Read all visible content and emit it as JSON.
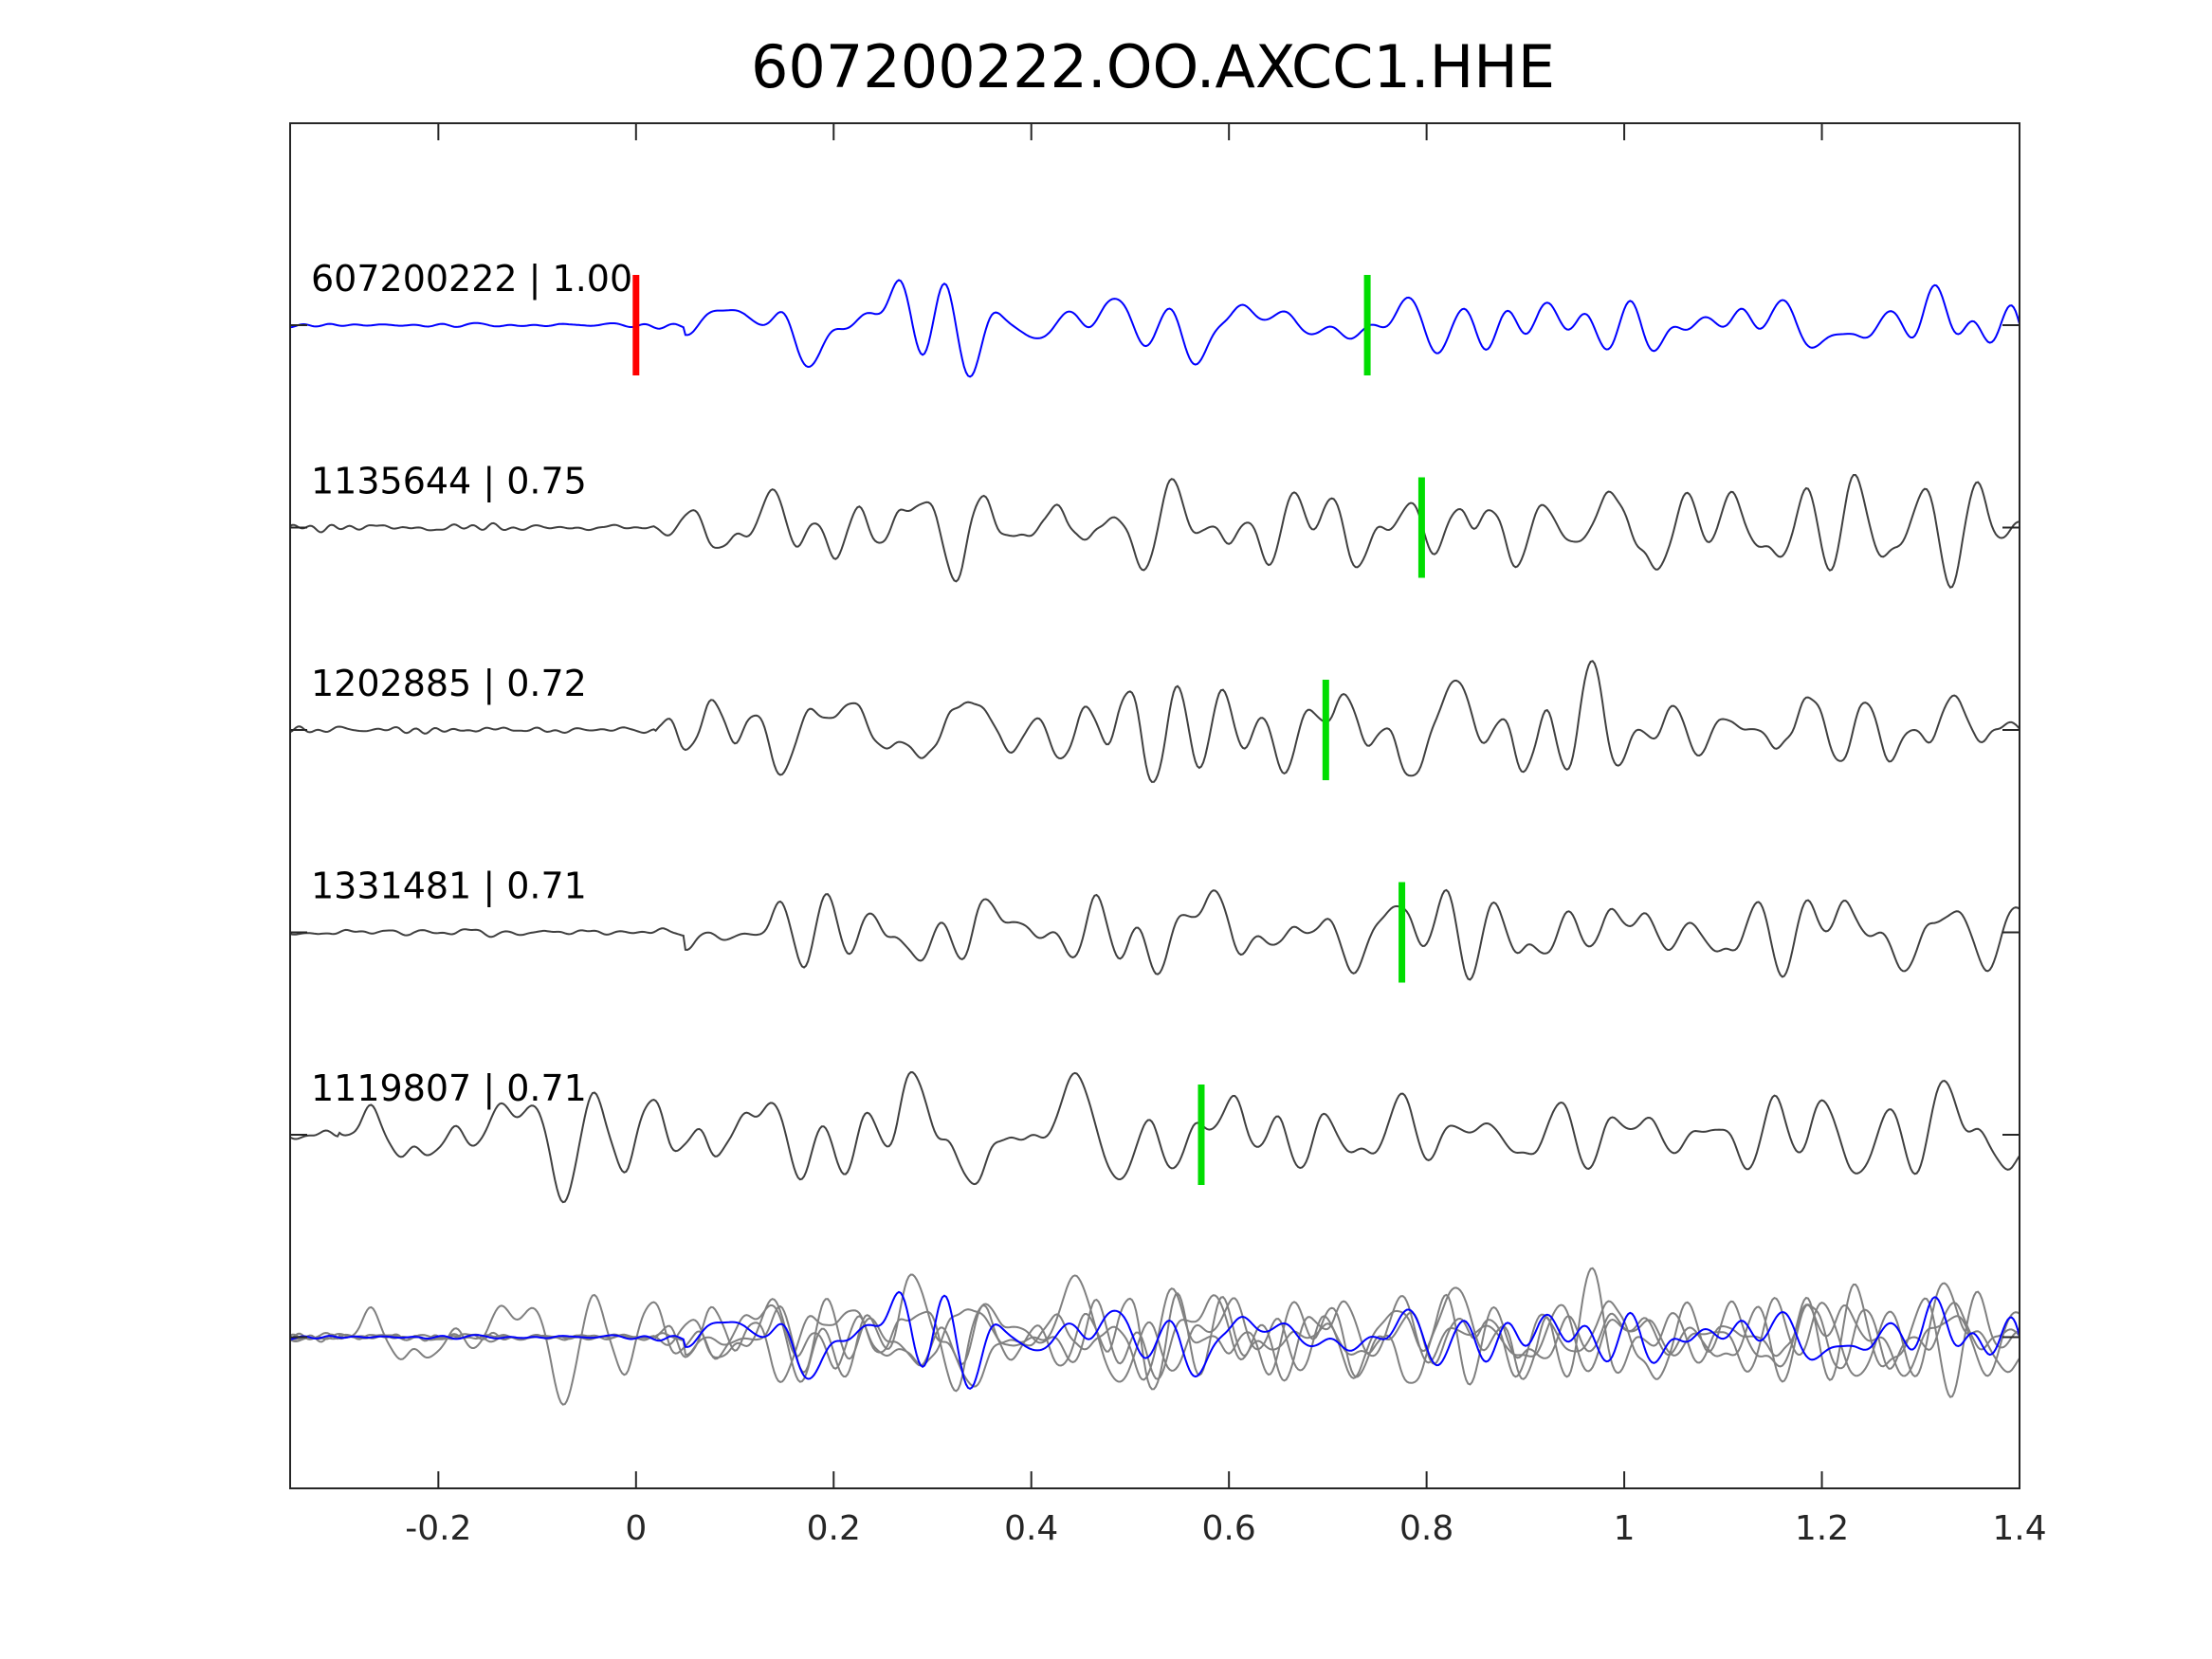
{
  "chart_data": {
    "type": "line",
    "title": "607200222.OO.AXCC1.HHE",
    "xlabel": "",
    "ylabel": "",
    "xlim": [
      -0.35,
      1.4
    ],
    "xticks": [
      -0.2,
      0,
      0.2,
      0.4,
      0.6,
      0.8,
      1,
      1.2,
      1.4
    ],
    "xtick_labels": [
      "-0.2",
      "0",
      "0.2",
      "0.4",
      "0.6",
      "0.8",
      "1",
      "1.2",
      "1.4"
    ],
    "grid": false,
    "colors": {
      "master": "#0000ff",
      "trace": "#404040",
      "overlay": "#808080",
      "origin_pick": "#ff0000",
      "phase_pick": "#00dd00"
    },
    "series": [
      {
        "name": "607200222",
        "cc": "1.00",
        "label": "607200222 | 1.00",
        "origin_pick": 0.0,
        "phase_pick": 0.74,
        "onset": 0.05,
        "seed": 11,
        "master": true
      },
      {
        "name": "1135644",
        "cc": "0.75",
        "label": "1135644 | 0.75",
        "phase_pick": 0.795,
        "onset": 0.02,
        "seed": 23
      },
      {
        "name": "1202885",
        "cc": "0.72",
        "label": "1202885 | 0.72",
        "phase_pick": 0.698,
        "onset": 0.02,
        "seed": 37
      },
      {
        "name": "1331481",
        "cc": "0.71",
        "label": "1331481 | 0.71",
        "phase_pick": 0.775,
        "onset": 0.05,
        "seed": 51
      },
      {
        "name": "1119807",
        "cc": "0.71",
        "label": "1119807 | 0.71",
        "phase_pick": 0.572,
        "onset": -0.3,
        "seed": 79
      }
    ],
    "overlay": "all traces stacked in bottom row"
  }
}
